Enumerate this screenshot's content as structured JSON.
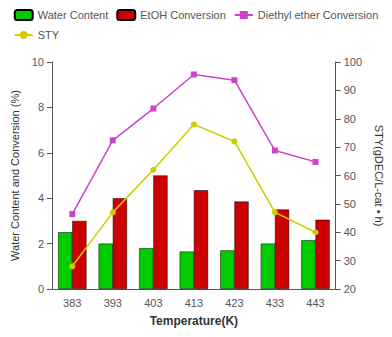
{
  "chart_data": {
    "type": "bar",
    "categories": [
      "383",
      "393",
      "403",
      "413",
      "423",
      "433",
      "443"
    ],
    "xlabel": "Temperature(K)",
    "ylabel": "Water Content and Conversion (%)",
    "y2label": "STY(gDEC/L-cat • h)",
    "ylim": [
      0,
      10
    ],
    "yticks": [
      0,
      2,
      4,
      6,
      8,
      10
    ],
    "y2lim": [
      20,
      100
    ],
    "y2ticks": [
      20,
      30,
      40,
      50,
      60,
      70,
      80,
      90,
      100
    ],
    "grid": false,
    "legend": "top",
    "series": [
      {
        "name": "Water Content",
        "type": "bar",
        "color": "#00cc00",
        "values": [
          2.5,
          2.0,
          1.8,
          1.65,
          1.7,
          2.0,
          2.15
        ]
      },
      {
        "name": "EtOH Conversion",
        "type": "bar",
        "color": "#cc0000",
        "values": [
          3.0,
          4.0,
          5.0,
          4.35,
          3.85,
          3.5,
          3.05
        ]
      },
      {
        "name": "Diethyl ether Conversion",
        "type": "line",
        "color": "#cc44cc",
        "marker": "square",
        "values": [
          3.3,
          6.55,
          7.95,
          9.45,
          9.2,
          6.1,
          5.6
        ]
      },
      {
        "name": "STY",
        "type": "line",
        "color": "#cccc00",
        "marker": "circle",
        "axis": "y2",
        "values": [
          28,
          47,
          62,
          78,
          72,
          47,
          40
        ]
      }
    ]
  }
}
